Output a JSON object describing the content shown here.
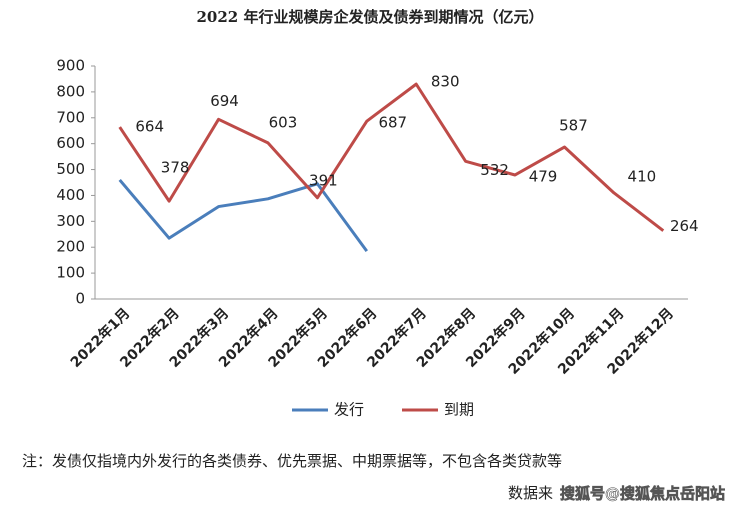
{
  "chart_data": {
    "type": "line",
    "title": "2022 年行业规模房企发债及债券到期情况（亿元）",
    "categories": [
      "2022年1月",
      "2022年2月",
      "2022年3月",
      "2022年4月",
      "2022年5月",
      "2022年6月",
      "2022年7月",
      "2022年8月",
      "2022年9月",
      "2022年10月",
      "2022年11月",
      "2022年12月"
    ],
    "series": [
      {
        "name": "发行",
        "color": "#4a7ebb",
        "values": [
          460,
          235,
          357,
          387,
          445,
          185,
          null,
          null,
          null,
          null,
          null,
          null
        ]
      },
      {
        "name": "到期",
        "color": "#be4b48",
        "values": [
          664,
          378,
          694,
          603,
          391,
          687,
          830,
          532,
          479,
          587,
          410,
          264
        ],
        "show_labels": true
      }
    ],
    "ylim": [
      0,
      900
    ],
    "yticks": [
      0,
      100,
      200,
      300,
      400,
      500,
      600,
      700,
      800,
      900
    ],
    "grid": false,
    "legend": "bottom",
    "note": "注：发债仅指境内外发行的各类债券、优先票据、中期票据等，不包含各类贷款等",
    "source": "数据来",
    "watermark": "搜狐号@搜狐焦点岳阳站"
  }
}
